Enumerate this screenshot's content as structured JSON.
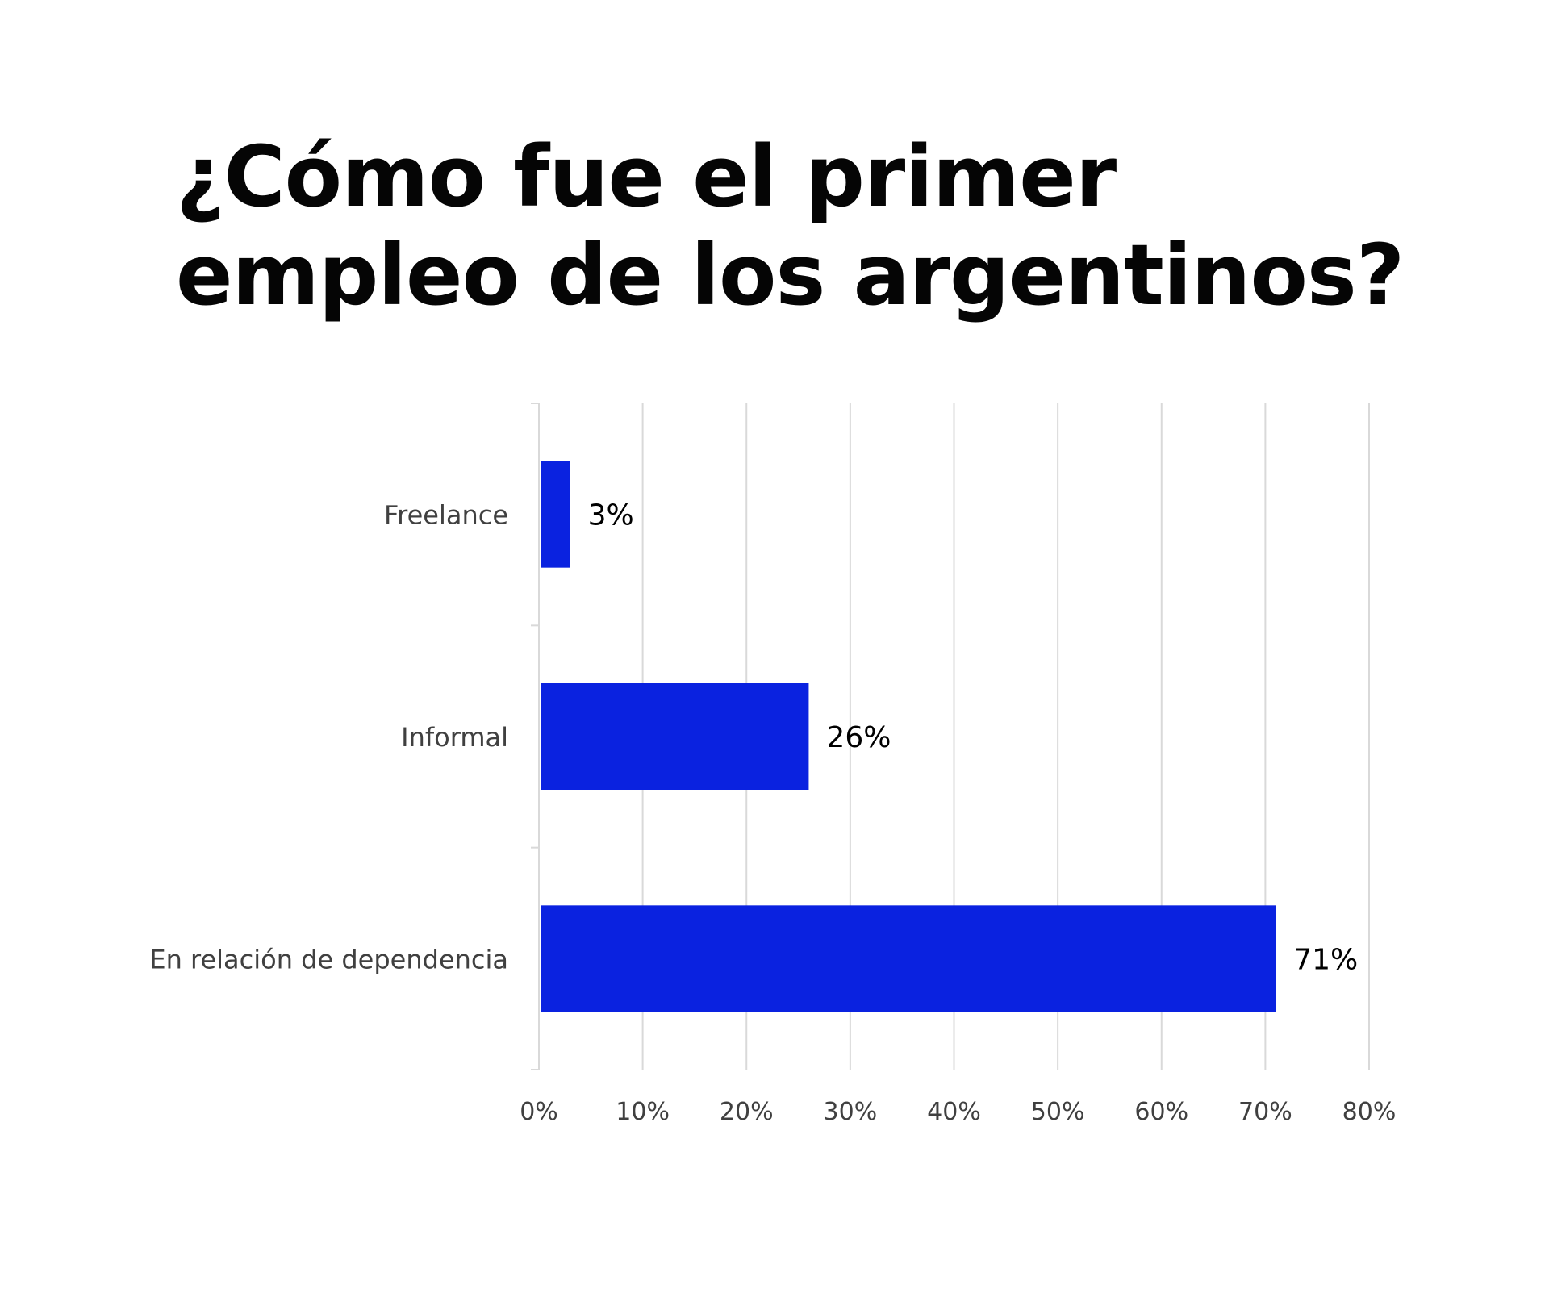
{
  "title_lines": [
    "¿Cómo fue el primer",
    "empleo de los argentinos?"
  ],
  "colors": {
    "bar": "#0a22e0",
    "grid": "#d9d9d9",
    "text": "#404040",
    "label": "#000000"
  },
  "chart_data": {
    "type": "bar",
    "orientation": "horizontal",
    "title": "¿Cómo fue el primer empleo de los argentinos?",
    "categories": [
      "Freelance",
      "Informal",
      "En relación de dependencia"
    ],
    "values": [
      3,
      26,
      71
    ],
    "data_labels": [
      "3%",
      "26%",
      "71%"
    ],
    "xlim": [
      0,
      80
    ],
    "x_ticks": [
      0,
      10,
      20,
      30,
      40,
      50,
      60,
      70,
      80
    ],
    "x_tick_labels": [
      "0%",
      "10%",
      "20%",
      "30%",
      "40%",
      "50%",
      "60%",
      "70%",
      "80%"
    ],
    "xlabel": "",
    "ylabel": "",
    "grid": true,
    "legend": "none"
  }
}
